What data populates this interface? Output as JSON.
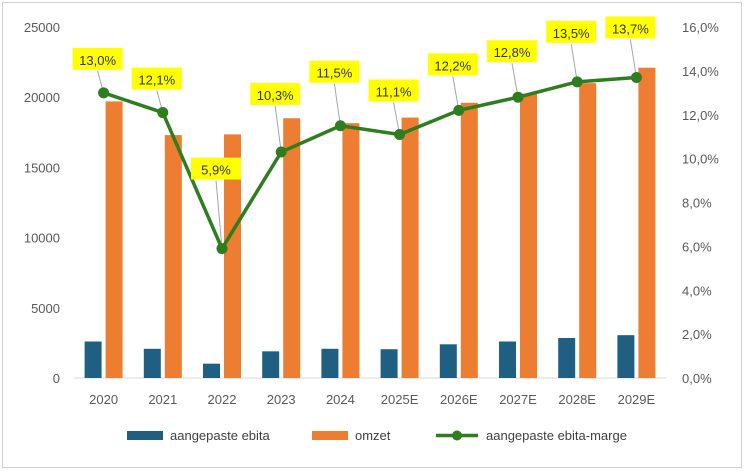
{
  "chart_data": {
    "type": "bar",
    "title": "",
    "categories": [
      "2020",
      "2021",
      "2022",
      "2023",
      "2024",
      "2025E",
      "2026E",
      "2027E",
      "2028E",
      "2029E"
    ],
    "series": [
      {
        "name": "aangepaste ebita",
        "kind": "bar",
        "axis": "left",
        "color": "#1f5f82",
        "values": [
          2600,
          2080,
          1020,
          1900,
          2080,
          2050,
          2400,
          2600,
          2850,
          3050
        ]
      },
      {
        "name": "omzet",
        "kind": "bar",
        "axis": "left",
        "color": "#ed7d31",
        "values": [
          19700,
          17300,
          17350,
          18500,
          18150,
          18550,
          19600,
          20250,
          21000,
          22100
        ]
      },
      {
        "name": "aangepaste ebita-marge",
        "kind": "line",
        "axis": "right",
        "color": "#2e7d1f",
        "values": [
          13.0,
          12.1,
          5.9,
          10.3,
          11.5,
          11.1,
          12.2,
          12.8,
          13.5,
          13.7
        ],
        "labels": [
          "13,0%",
          "12,1%",
          "5,9%",
          "10,3%",
          "11,5%",
          "11,1%",
          "12,2%",
          "12,8%",
          "13,5%",
          "13,7%"
        ]
      }
    ],
    "y_left": {
      "min": 0,
      "max": 25000,
      "ticks": [
        0,
        5000,
        10000,
        15000,
        20000,
        25000
      ],
      "tick_labels": [
        "0",
        "5000",
        "10000",
        "15000",
        "20000",
        "25000"
      ]
    },
    "y_right": {
      "min": 0,
      "max": 16,
      "ticks": [
        0,
        2,
        4,
        6,
        8,
        10,
        12,
        14,
        16
      ],
      "tick_labels": [
        "0,0%",
        "2,0%",
        "4,0%",
        "6,0%",
        "8,0%",
        "10,0%",
        "12,0%",
        "14,0%",
        "16,0%"
      ]
    },
    "grid": false,
    "legend_position": "bottom",
    "label_box_color": "#ffff00"
  }
}
